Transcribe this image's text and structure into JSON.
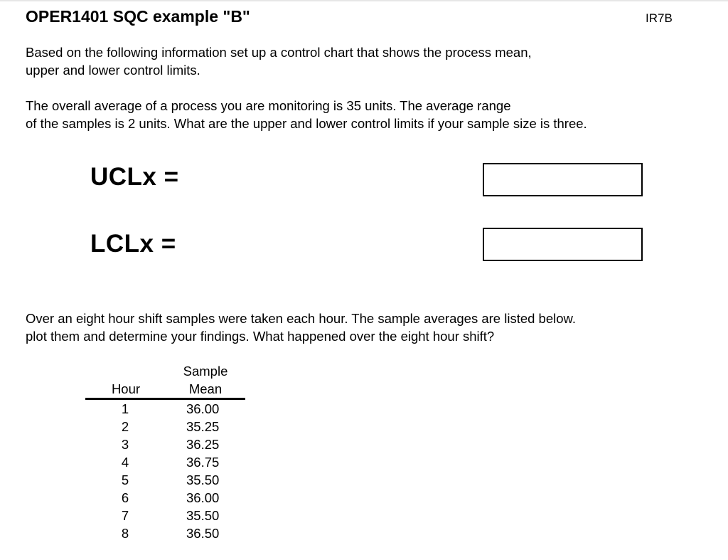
{
  "header": {
    "title": "OPER1401 SQC example \"B\"",
    "code": "IR7B"
  },
  "intro": {
    "line1": "Based on the following information set up a control chart that shows the process mean,",
    "line2": "upper and lower control limits."
  },
  "problem": {
    "line1": "The overall average of a process you are monitoring is 35 units. The average range",
    "line2": "of the samples is 2 units. What are the upper and lower control limits if your sample size is three."
  },
  "formulas": {
    "ucl_label": "UCLx  =",
    "lcl_label": "LCLx  ="
  },
  "shift": {
    "line1": "Over an eight hour shift samples were taken each hour. The sample averages are listed below.",
    "line2": "plot them and determine your findings. What happened over the eight hour shift?"
  },
  "table": {
    "header_hour": "Hour",
    "header_mean_line1": "Sample",
    "header_mean_line2": "Mean",
    "rows": [
      {
        "hour": "1",
        "mean": "36.00"
      },
      {
        "hour": "2",
        "mean": "35.25"
      },
      {
        "hour": "3",
        "mean": "36.25"
      },
      {
        "hour": "4",
        "mean": "36.75"
      },
      {
        "hour": "5",
        "mean": "35.50"
      },
      {
        "hour": "6",
        "mean": "36.00"
      },
      {
        "hour": "7",
        "mean": "35.50"
      },
      {
        "hour": "8",
        "mean": "36.50"
      }
    ]
  }
}
